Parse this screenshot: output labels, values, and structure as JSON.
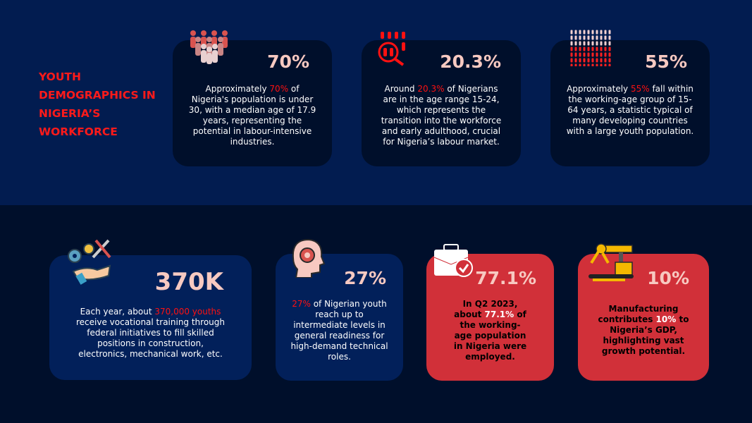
{
  "title": "Youth Demographics in Nigeria’s Workforce",
  "colors": {
    "top_bg": "#021c50",
    "bottom_bg": "#000f2b",
    "highlight": "#ff1111",
    "stat": "#f7c9c1",
    "red_card": "#d13039"
  },
  "cards": [
    {
      "icon": "crowd-icon",
      "value": "70%",
      "pre": "Approximately ",
      "hl": "70%",
      "post": " of Nigeria's population is under 30, with a median age of 17.9 years, representing the potential in labour-intensive industries."
    },
    {
      "icon": "people-search-icon",
      "value": "20.3%",
      "pre": "Around ",
      "hl": "20.3%",
      "post": " of Nigerians are in the age range 15-24, which represents the transition into the workforce and early adulthood, crucial for Nigeria’s labour market."
    },
    {
      "icon": "population-grid-icon",
      "value": "55%",
      "pre": "Approximately ",
      "hl": "55%",
      "post": " fall within the working-age group of 15-64 years, a statistic typical of many developing countries with a large youth population."
    },
    {
      "icon": "hand-tools-gears-icon",
      "value": "370K",
      "pre": "Each year, about ",
      "hl": "370,000 youths",
      "post": " receive vocational training through federal initiatives to fill skilled positions in construction, electronics, mechanical work, etc."
    },
    {
      "icon": "head-gear-icon",
      "value": "27%",
      "pre": "",
      "hl": "27%",
      "post": " of Nigerian youth reach up to intermediate levels in general readiness for high-demand technical roles."
    },
    {
      "icon": "briefcase-check-icon",
      "value": "77.1%",
      "pre": "In Q2 2023, about ",
      "hl": "77.1%",
      "post": " of the working-age population in Nigeria were employed."
    },
    {
      "icon": "robotic-arm-icon",
      "value": "10%",
      "pre": "Manufacturing contributes ",
      "hl": "10%",
      "post": " to Nigeria’s GDP, highlighting vast growth potential."
    }
  ]
}
